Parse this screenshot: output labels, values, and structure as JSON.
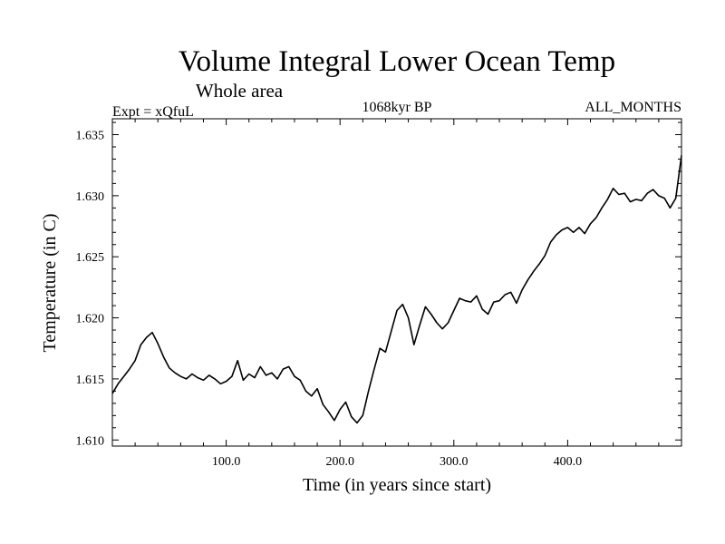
{
  "chart_data": {
    "type": "line",
    "title": "Volume Integral Lower Ocean Temp",
    "subtitle": "Whole area",
    "experiment": "Expt = xQfuL",
    "period": "1068kyr BP",
    "months": "ALL_MONTHS",
    "xlabel": "Time (in years since start)",
    "ylabel": "Temperature (in C)",
    "xlim": [
      0,
      500
    ],
    "ylim": [
      1.6095,
      1.6363
    ],
    "x_tick_values": [
      100,
      200,
      300,
      400
    ],
    "x_tick_labels": [
      "100.0",
      "200.0",
      "300.0",
      "400.0"
    ],
    "y_tick_values": [
      1.61,
      1.615,
      1.62,
      1.625,
      1.63,
      1.635
    ],
    "y_tick_labels": [
      "1.610",
      "1.615",
      "1.620",
      "1.625",
      "1.630",
      "1.635"
    ],
    "series": [
      {
        "name": "Volume Integral Lower Ocean Temp",
        "x": [
          0,
          5,
          10,
          15,
          20,
          25,
          30,
          35,
          40,
          45,
          50,
          55,
          60,
          65,
          70,
          75,
          80,
          85,
          90,
          95,
          100,
          105,
          110,
          115,
          120,
          125,
          130,
          135,
          140,
          145,
          150,
          155,
          160,
          165,
          170,
          175,
          180,
          185,
          190,
          195,
          200,
          205,
          210,
          215,
          220,
          225,
          230,
          235,
          240,
          245,
          250,
          255,
          260,
          265,
          270,
          275,
          280,
          285,
          290,
          295,
          300,
          305,
          310,
          315,
          320,
          325,
          330,
          335,
          340,
          345,
          350,
          355,
          360,
          365,
          370,
          375,
          380,
          385,
          390,
          395,
          400,
          405,
          410,
          415,
          420,
          425,
          430,
          435,
          440,
          445,
          450,
          455,
          460,
          465,
          470,
          475,
          480,
          485,
          490,
          495,
          500
        ],
        "values": [
          1.6138,
          1.6146,
          1.6152,
          1.6158,
          1.6165,
          1.6178,
          1.6184,
          1.6188,
          1.6179,
          1.6168,
          1.6159,
          1.6155,
          1.6152,
          1.615,
          1.6154,
          1.6151,
          1.6149,
          1.6153,
          1.615,
          1.6146,
          1.6148,
          1.6152,
          1.6165,
          1.6149,
          1.6154,
          1.6151,
          1.616,
          1.6153,
          1.6155,
          1.615,
          1.6158,
          1.616,
          1.6152,
          1.6149,
          1.614,
          1.6136,
          1.6142,
          1.6129,
          1.6123,
          1.6116,
          1.6125,
          1.6131,
          1.6119,
          1.6114,
          1.612,
          1.614,
          1.6158,
          1.6175,
          1.6172,
          1.6189,
          1.6206,
          1.6211,
          1.62,
          1.6178,
          1.6194,
          1.6209,
          1.6203,
          1.6196,
          1.6191,
          1.6196,
          1.6206,
          1.6216,
          1.6214,
          1.6213,
          1.6218,
          1.6207,
          1.6203,
          1.6213,
          1.6214,
          1.6219,
          1.6221,
          1.6212,
          1.6223,
          1.6231,
          1.6238,
          1.6244,
          1.6251,
          1.6262,
          1.6268,
          1.6272,
          1.6274,
          1.627,
          1.6274,
          1.6269,
          1.6277,
          1.6282,
          1.629,
          1.6297,
          1.6306,
          1.6301,
          1.6302,
          1.6295,
          1.6297,
          1.6296,
          1.6302,
          1.6305,
          1.63,
          1.6298,
          1.629,
          1.6298,
          1.6333
        ]
      }
    ]
  }
}
